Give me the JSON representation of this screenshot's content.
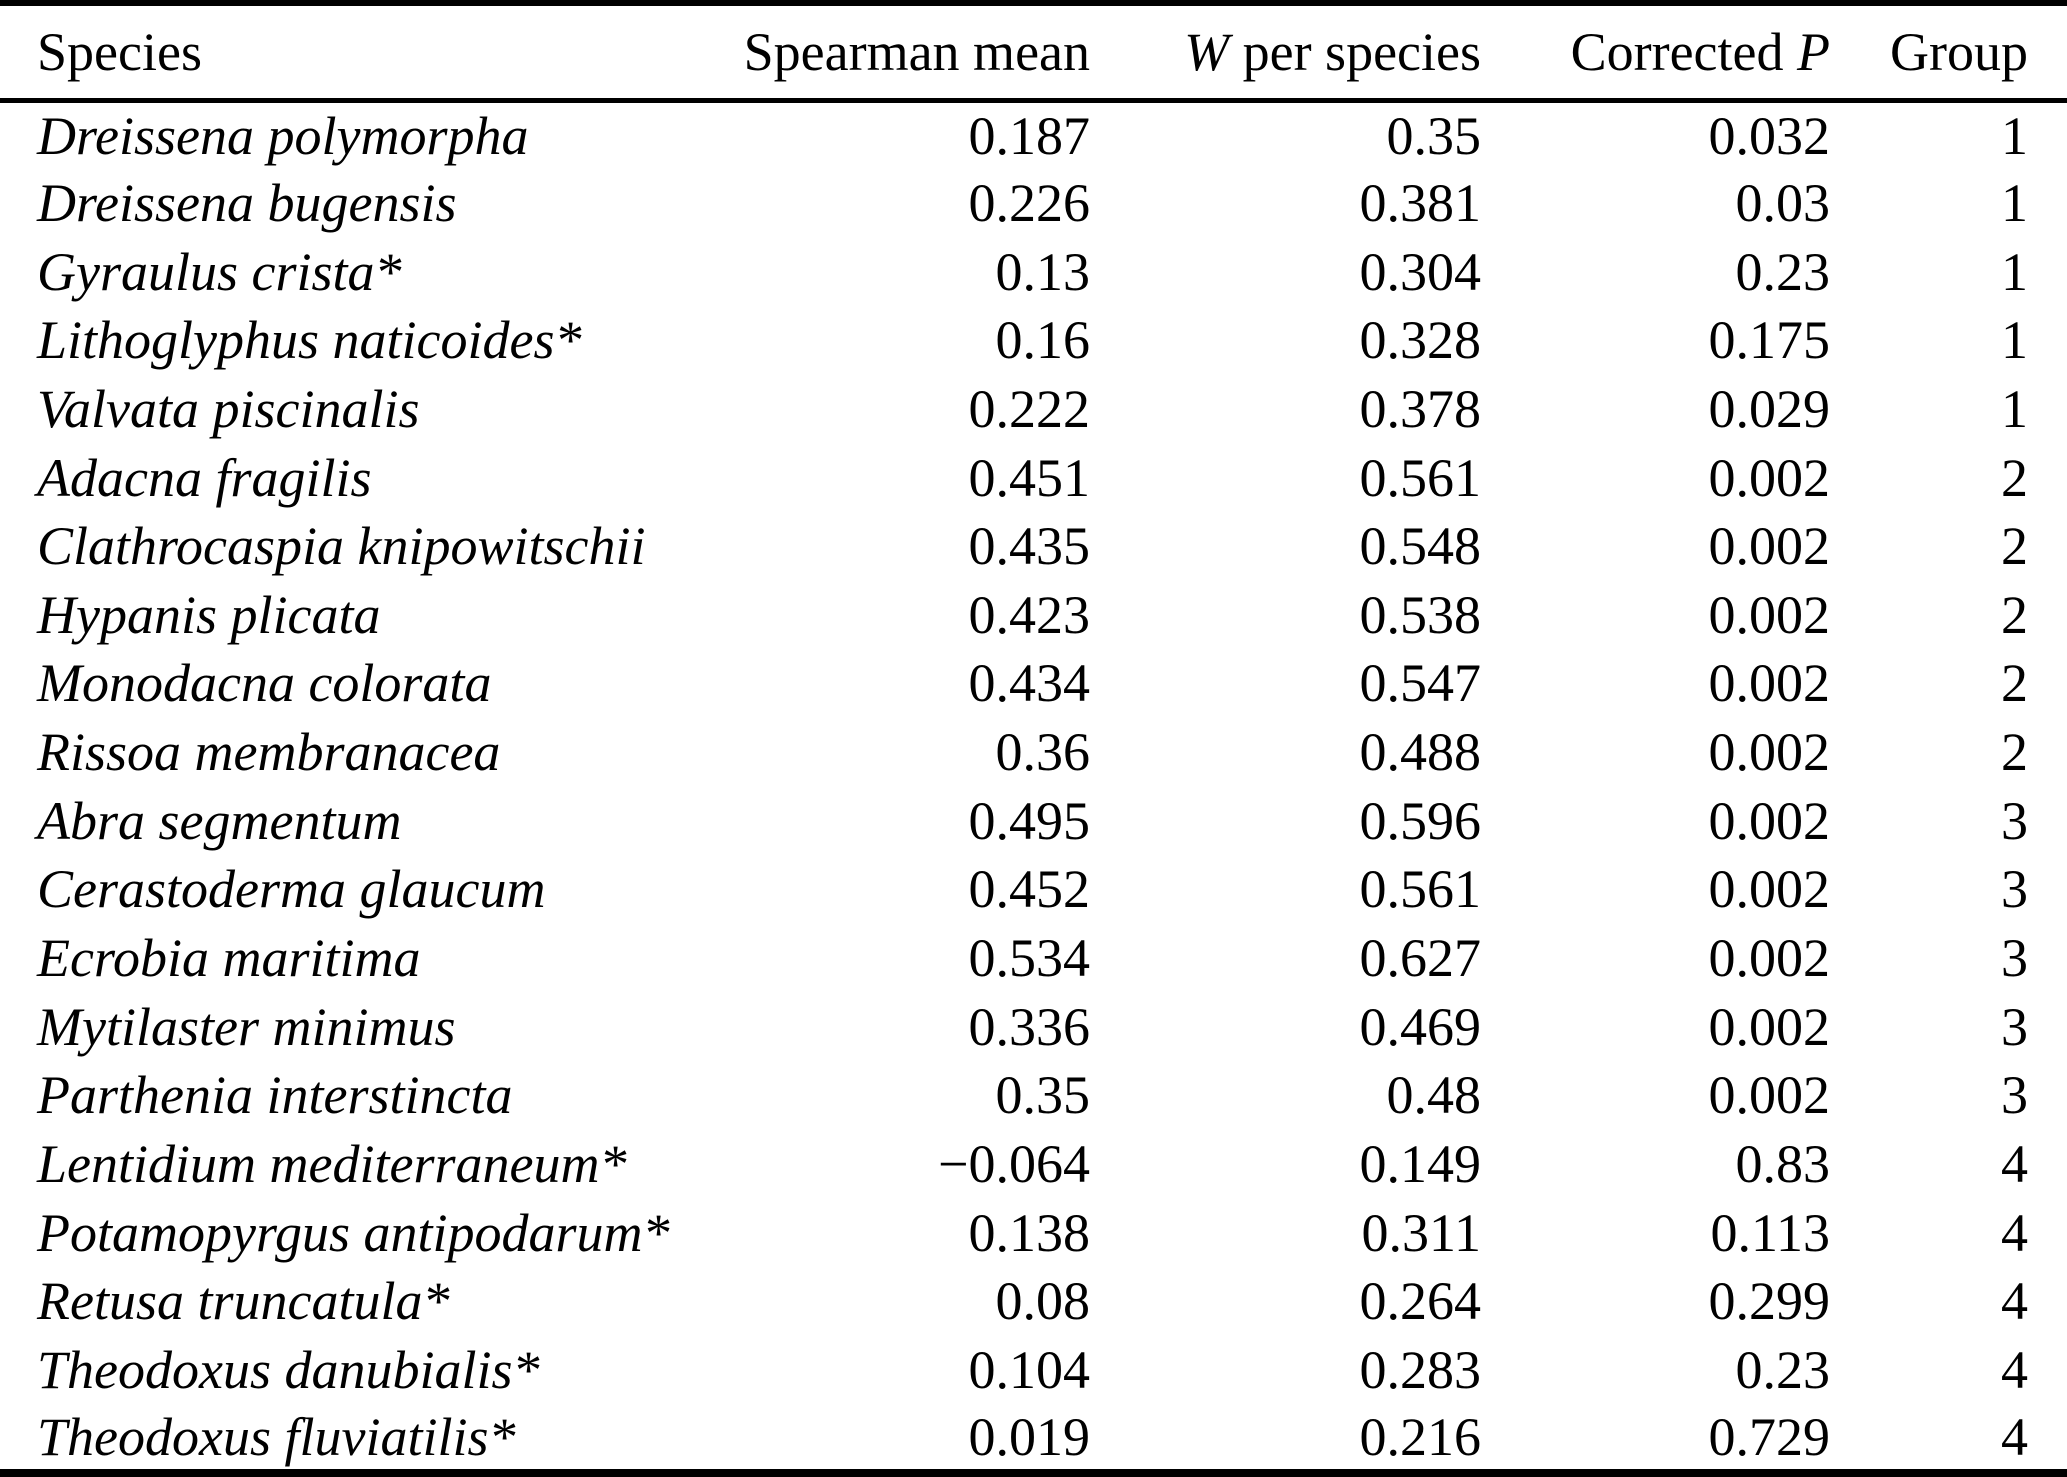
{
  "colors": {
    "text": "#000000",
    "background": "#ffffff",
    "rule": "#000000"
  },
  "table": {
    "header": {
      "species": "Species",
      "spearman_mean": "Spearman mean",
      "w_italic": "W",
      "w_rest": " per species",
      "corrected_prefix": "Corrected ",
      "p_italic": "P",
      "group": "Group"
    },
    "rows": [
      {
        "species": "Dreissena polymorpha",
        "spearman": "0.187",
        "w": "0.35",
        "p": "0.032",
        "group": "1"
      },
      {
        "species": "Dreissena bugensis",
        "spearman": "0.226",
        "w": "0.381",
        "p": "0.03",
        "group": "1"
      },
      {
        "species": "Gyraulus crista*",
        "spearman": "0.13",
        "w": "0.304",
        "p": "0.23",
        "group": "1"
      },
      {
        "species": "Lithoglyphus naticoides*",
        "spearman": "0.16",
        "w": "0.328",
        "p": "0.175",
        "group": "1"
      },
      {
        "species": "Valvata piscinalis",
        "spearman": "0.222",
        "w": "0.378",
        "p": "0.029",
        "group": "1"
      },
      {
        "species": "Adacna fragilis",
        "spearman": "0.451",
        "w": "0.561",
        "p": "0.002",
        "group": "2"
      },
      {
        "species": "Clathrocaspia knipowitschii",
        "spearman": "0.435",
        "w": "0.548",
        "p": "0.002",
        "group": "2"
      },
      {
        "species": "Hypanis plicata",
        "spearman": "0.423",
        "w": "0.538",
        "p": "0.002",
        "group": "2"
      },
      {
        "species": "Monodacna colorata",
        "spearman": "0.434",
        "w": "0.547",
        "p": "0.002",
        "group": "2"
      },
      {
        "species": "Rissoa membranacea",
        "spearman": "0.36",
        "w": "0.488",
        "p": "0.002",
        "group": "2"
      },
      {
        "species": "Abra segmentum",
        "spearman": "0.495",
        "w": "0.596",
        "p": "0.002",
        "group": "3"
      },
      {
        "species": "Cerastoderma glaucum",
        "spearman": "0.452",
        "w": "0.561",
        "p": "0.002",
        "group": "3"
      },
      {
        "species": "Ecrobia maritima",
        "spearman": "0.534",
        "w": "0.627",
        "p": "0.002",
        "group": "3"
      },
      {
        "species": "Mytilaster minimus",
        "spearman": "0.336",
        "w": "0.469",
        "p": "0.002",
        "group": "3"
      },
      {
        "species": "Parthenia interstincta",
        "spearman": "0.35",
        "w": "0.48",
        "p": "0.002",
        "group": "3"
      },
      {
        "species": "Lentidium mediterraneum*",
        "spearman": "−0.064",
        "w": "0.149",
        "p": "0.83",
        "group": "4"
      },
      {
        "species": "Potamopyrgus antipodarum*",
        "spearman": "0.138",
        "w": "0.311",
        "p": "0.113",
        "group": "4"
      },
      {
        "species": "Retusa truncatula*",
        "spearman": "0.08",
        "w": "0.264",
        "p": "0.299",
        "group": "4"
      },
      {
        "species": "Theodoxus danubialis*",
        "spearman": "0.104",
        "w": "0.283",
        "p": "0.23",
        "group": "4"
      },
      {
        "species": "Theodoxus fluviatilis*",
        "spearman": "0.019",
        "w": "0.216",
        "p": "0.729",
        "group": "4"
      }
    ]
  }
}
